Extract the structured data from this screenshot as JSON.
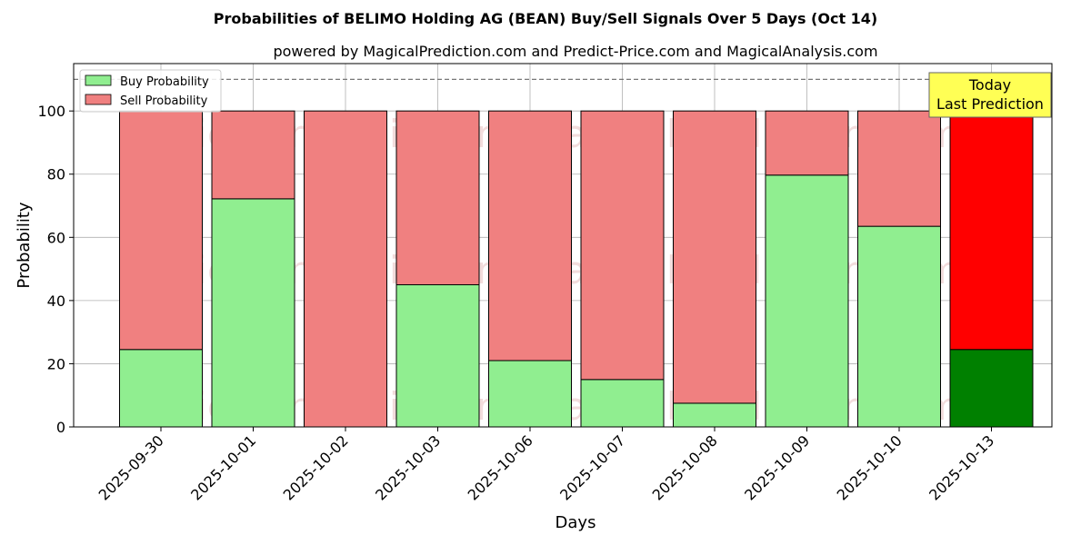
{
  "chart_data": {
    "type": "bar",
    "stacked": true,
    "title": "Probabilities of BELIMO Holding AG (BEAN) Buy/Sell Signals Over 5 Days (Oct 14)",
    "subtitle": "powered by MagicalPrediction.com and Predict-Price.com and MagicalAnalysis.com",
    "xlabel": "Days",
    "ylabel": "Probability",
    "ylim": [
      0,
      115
    ],
    "yticks": [
      0,
      20,
      40,
      60,
      80,
      100
    ],
    "threshold_line": 110,
    "grid": true,
    "legend_position": "top-left",
    "categories": [
      "2025-09-30",
      "2025-10-01",
      "2025-10-02",
      "2025-10-03",
      "2025-10-06",
      "2025-10-07",
      "2025-10-08",
      "2025-10-09",
      "2025-10-10",
      "2025-10-13"
    ],
    "series": [
      {
        "name": "Buy Probability",
        "color": "#90ee90",
        "today_color": "#008000",
        "values": [
          24.5,
          72.2,
          0,
          45.0,
          21.0,
          15.0,
          7.5,
          79.7,
          63.5,
          24.5
        ]
      },
      {
        "name": "Sell Probability",
        "color": "#f08080",
        "today_color": "#ff0000",
        "values": [
          75.5,
          27.8,
          100,
          55.0,
          79.0,
          85.0,
          92.5,
          20.3,
          36.5,
          75.5
        ]
      }
    ],
    "annotation": {
      "lines": [
        "Today",
        "Last Prediction"
      ],
      "background": "#ffff55"
    },
    "watermarks": [
      "MagicalAnalysis.com",
      "MagicalPrediction.com"
    ]
  }
}
